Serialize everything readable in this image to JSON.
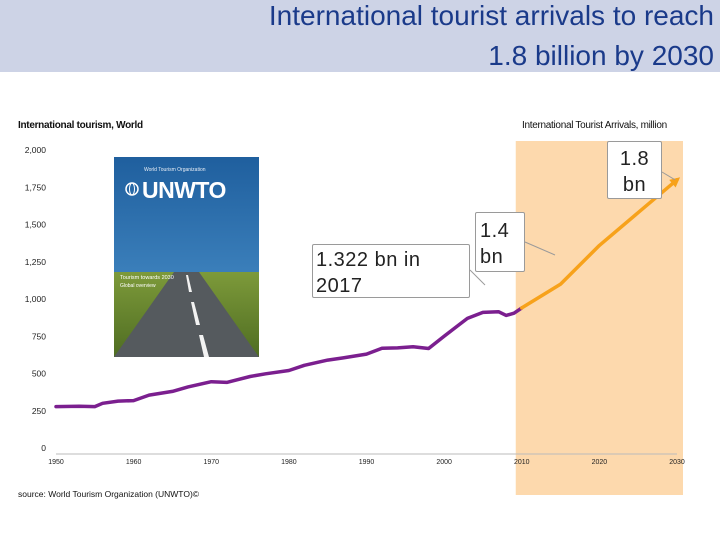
{
  "title": {
    "line1": "International tourist arrivals to reach",
    "line2": "1.8 billion by 2030"
  },
  "chart_header": {
    "left": "International tourism, World",
    "right": "International Tourist Arrivals, million"
  },
  "source_note": "source: World Tourism Organization (UNWTO)©",
  "book_cover": {
    "org_text": "World Tourism Organization",
    "logo_text": "UNWTO",
    "cover_title": "Tourism towards 2030",
    "cover_subtitle": "Global overview"
  },
  "callouts": {
    "c2017": "1.322 bn in 2017",
    "c2014": "1.4 bn",
    "c2030": "1.8 bn"
  },
  "colors": {
    "historical": "#7b1f8f",
    "forecast": "#f7a21b",
    "forecast_band": "#fdd9ad",
    "title_bar": "#cdd3e6",
    "title_text": "#1a3a8a"
  },
  "chart_data": {
    "type": "line",
    "title": "International tourism, World",
    "ylabel": "International Tourist Arrivals, million",
    "xlim": [
      1950,
      2030
    ],
    "ylim": [
      0,
      2000
    ],
    "x_ticks": [
      "1950",
      "1955",
      "1960",
      "1965",
      "1970",
      "1975",
      "1980",
      "1985",
      "1990",
      "1995",
      "2000",
      "2005",
      "2010",
      "2015",
      "2020",
      "2025",
      "2030"
    ],
    "y_ticks": [
      "0",
      "250",
      "500",
      "750",
      "1,000",
      "1,250",
      "1,500",
      "1,750",
      "2,000"
    ],
    "forecast_shaded_from": 2010,
    "series": [
      {
        "type": "historical",
        "x": [
          1950,
          1953,
          1955,
          1956,
          1958,
          1960,
          1962,
          1965,
          1967,
          1970,
          1972,
          1975,
          1977,
          1980,
          1982,
          1985,
          1987,
          1990,
          1992,
          1994,
          1996,
          1998,
          2000,
          2001,
          2002,
          2003,
          2005,
          2007,
          2008,
          2009,
          2010
        ],
        "y": [
          278,
          280,
          278,
          300,
          315,
          318,
          355,
          380,
          410,
          445,
          440,
          480,
          498,
          520,
          555,
          590,
          605,
          630,
          670,
          672,
          680,
          668,
          750,
          790,
          830,
          870,
          910,
          915,
          890,
          905,
          940
        ]
      },
      {
        "type": "forecast",
        "x": [
          2010,
          2015,
          2020,
          2025,
          2030
        ],
        "y": [
          940,
          1100,
          1360,
          1580,
          1800
        ]
      }
    ]
  }
}
